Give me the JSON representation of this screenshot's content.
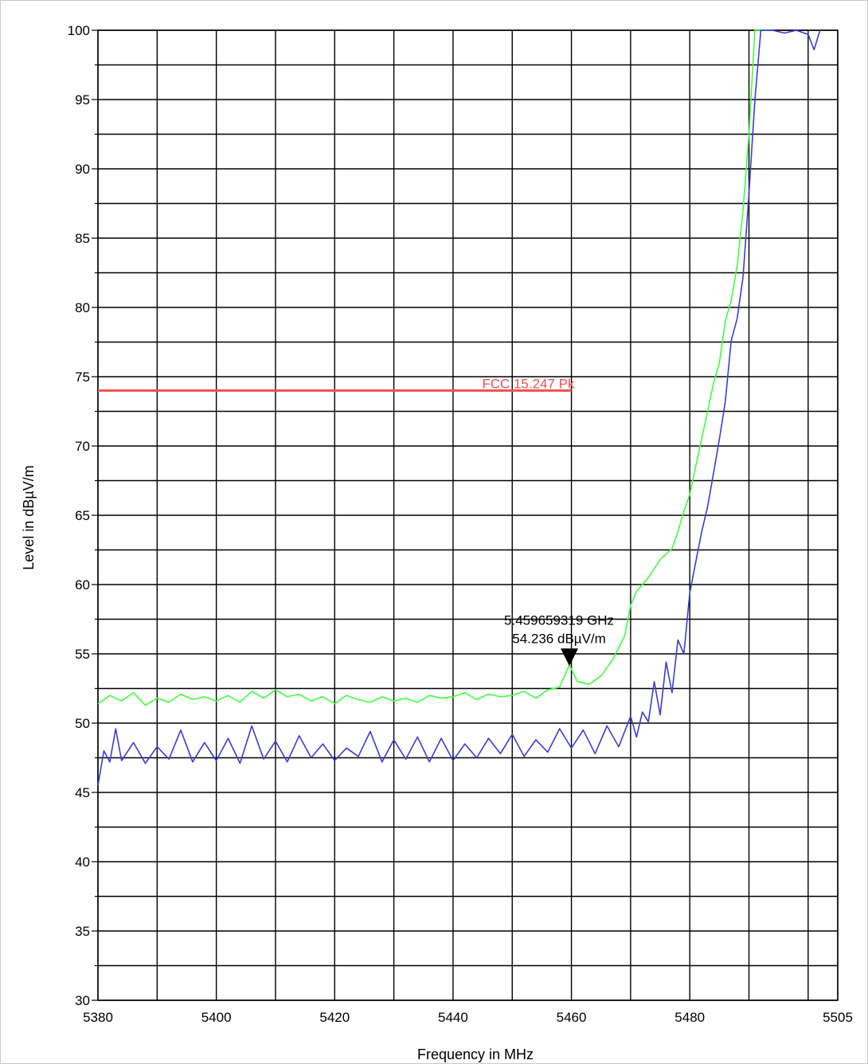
{
  "chart_data": {
    "type": "line",
    "xlabel": "Frequency in MHz",
    "ylabel": "Level in dBµV/m",
    "xlim": [
      5380,
      5505
    ],
    "ylim": [
      30,
      100
    ],
    "x_ticks": [
      5380,
      5400,
      5420,
      5440,
      5460,
      5480,
      5505
    ],
    "y_ticks": [
      30,
      35,
      40,
      45,
      50,
      55,
      60,
      65,
      70,
      75,
      80,
      85,
      90,
      95,
      100
    ],
    "grid": true,
    "colors": {
      "peak": "#40ff40",
      "average": "#3c3cdc",
      "limit": "#f05050"
    },
    "limit_line": {
      "label": "FCC 15.247 Pk",
      "value": 74,
      "x_start": 5380,
      "x_end": 5460
    },
    "marker": {
      "freq_label": "5.459659319 GHz",
      "level_label": "54.236 dBµV/m",
      "x": 5459.66,
      "y": 54.236
    },
    "series": [
      {
        "key": "peak",
        "points": [
          [
            5380,
            51.4
          ],
          [
            5382,
            52.0
          ],
          [
            5384,
            51.6
          ],
          [
            5386,
            52.2
          ],
          [
            5388,
            51.3
          ],
          [
            5390,
            51.8
          ],
          [
            5392,
            51.5
          ],
          [
            5394,
            52.1
          ],
          [
            5396,
            51.7
          ],
          [
            5398,
            51.9
          ],
          [
            5400,
            51.6
          ],
          [
            5402,
            52.0
          ],
          [
            5404,
            51.5
          ],
          [
            5406,
            52.3
          ],
          [
            5408,
            51.8
          ],
          [
            5410,
            52.4
          ],
          [
            5412,
            51.9
          ],
          [
            5414,
            52.1
          ],
          [
            5416,
            51.6
          ],
          [
            5418,
            51.9
          ],
          [
            5420,
            51.4
          ],
          [
            5422,
            52.0
          ],
          [
            5424,
            51.7
          ],
          [
            5426,
            51.5
          ],
          [
            5428,
            51.9
          ],
          [
            5430,
            51.6
          ],
          [
            5432,
            51.8
          ],
          [
            5434,
            51.5
          ],
          [
            5436,
            52.0
          ],
          [
            5438,
            51.8
          ],
          [
            5440,
            51.9
          ],
          [
            5442,
            52.2
          ],
          [
            5444,
            51.7
          ],
          [
            5446,
            52.1
          ],
          [
            5448,
            51.9
          ],
          [
            5450,
            52.0
          ],
          [
            5452,
            52.3
          ],
          [
            5454,
            51.8
          ],
          [
            5456,
            52.4
          ],
          [
            5458,
            52.6
          ],
          [
            5459.66,
            54.2
          ],
          [
            5461,
            53.0
          ],
          [
            5463,
            52.8
          ],
          [
            5465,
            53.4
          ],
          [
            5467,
            54.6
          ],
          [
            5469,
            56.3
          ],
          [
            5470,
            58.5
          ],
          [
            5471,
            59.5
          ],
          [
            5473,
            60.5
          ],
          [
            5475,
            61.8
          ],
          [
            5477,
            62.6
          ],
          [
            5478,
            63.8
          ],
          [
            5479,
            65.3
          ],
          [
            5480,
            66.5
          ],
          [
            5481,
            68.5
          ],
          [
            5482,
            70.5
          ],
          [
            5483,
            72.5
          ],
          [
            5484,
            74.5
          ],
          [
            5485,
            76.0
          ],
          [
            5486,
            79.0
          ],
          [
            5487,
            80.5
          ],
          [
            5488,
            83.0
          ],
          [
            5489,
            87.0
          ],
          [
            5490,
            92.5
          ],
          [
            5491,
            100.0
          ],
          [
            5493,
            100.0
          ],
          [
            5494,
            100.0
          ]
        ]
      },
      {
        "key": "average",
        "points": [
          [
            5380,
            45.5
          ],
          [
            5381,
            48.0
          ],
          [
            5382,
            47.2
          ],
          [
            5383,
            49.6
          ],
          [
            5384,
            47.3
          ],
          [
            5386,
            48.6
          ],
          [
            5388,
            47.1
          ],
          [
            5390,
            48.3
          ],
          [
            5392,
            47.4
          ],
          [
            5394,
            49.5
          ],
          [
            5396,
            47.2
          ],
          [
            5398,
            48.6
          ],
          [
            5400,
            47.3
          ],
          [
            5402,
            48.9
          ],
          [
            5404,
            47.1
          ],
          [
            5406,
            49.8
          ],
          [
            5408,
            47.4
          ],
          [
            5410,
            48.7
          ],
          [
            5412,
            47.2
          ],
          [
            5414,
            49.1
          ],
          [
            5416,
            47.5
          ],
          [
            5418,
            48.5
          ],
          [
            5420,
            47.3
          ],
          [
            5422,
            48.2
          ],
          [
            5424,
            47.6
          ],
          [
            5426,
            49.4
          ],
          [
            5428,
            47.2
          ],
          [
            5430,
            48.8
          ],
          [
            5432,
            47.4
          ],
          [
            5434,
            49.0
          ],
          [
            5436,
            47.2
          ],
          [
            5438,
            48.9
          ],
          [
            5440,
            47.3
          ],
          [
            5442,
            48.5
          ],
          [
            5444,
            47.5
          ],
          [
            5446,
            48.9
          ],
          [
            5448,
            47.8
          ],
          [
            5450,
            49.2
          ],
          [
            5452,
            47.6
          ],
          [
            5454,
            48.8
          ],
          [
            5456,
            47.9
          ],
          [
            5458,
            49.6
          ],
          [
            5460,
            48.2
          ],
          [
            5462,
            49.5
          ],
          [
            5464,
            47.8
          ],
          [
            5466,
            49.8
          ],
          [
            5468,
            48.3
          ],
          [
            5470,
            50.5
          ],
          [
            5471,
            49.0
          ],
          [
            5472,
            50.8
          ],
          [
            5473,
            50.1
          ],
          [
            5474,
            53.0
          ],
          [
            5475,
            50.6
          ],
          [
            5476,
            54.4
          ],
          [
            5477,
            52.2
          ],
          [
            5478,
            56.0
          ],
          [
            5479,
            55.0
          ],
          [
            5480,
            59.4
          ],
          [
            5481,
            61.6
          ],
          [
            5482,
            63.8
          ],
          [
            5483,
            65.6
          ],
          [
            5484,
            68.0
          ],
          [
            5485,
            70.5
          ],
          [
            5486,
            73.2
          ],
          [
            5487,
            77.6
          ],
          [
            5488,
            79.2
          ],
          [
            5489,
            82.2
          ],
          [
            5490,
            88.2
          ],
          [
            5491,
            95.0
          ],
          [
            5492,
            100.0
          ],
          [
            5494,
            100.0
          ],
          [
            5496,
            99.8
          ],
          [
            5498,
            100.0
          ],
          [
            5500,
            99.7
          ],
          [
            5501,
            98.6
          ],
          [
            5502,
            100.0
          ]
        ]
      }
    ]
  }
}
